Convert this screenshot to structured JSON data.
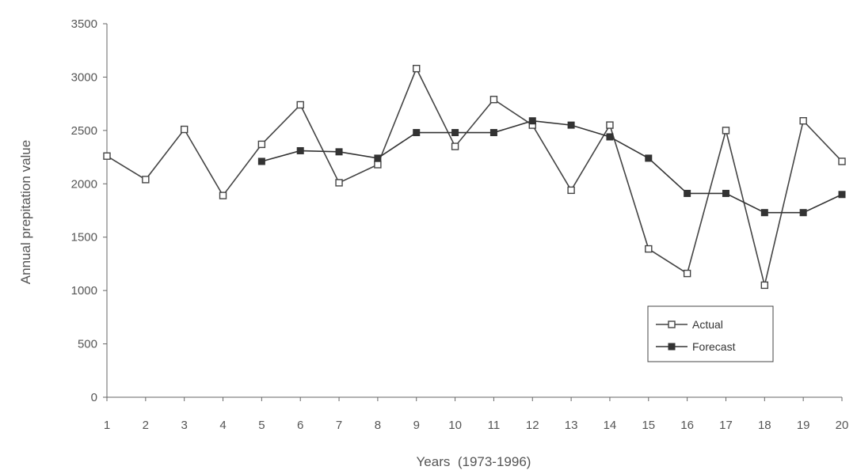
{
  "chart_data": {
    "type": "line",
    "title": "",
    "xlabel": "Years  (1973-1996)",
    "ylabel": "Annual prepitation value",
    "x": [
      1,
      2,
      3,
      4,
      5,
      6,
      7,
      8,
      9,
      10,
      11,
      12,
      13,
      14,
      15,
      16,
      17,
      18,
      19,
      20
    ],
    "xticks": [
      "1",
      "2",
      "3",
      "4",
      "5",
      "6",
      "7",
      "8",
      "9",
      "10",
      "11",
      "12",
      "13",
      "14",
      "15",
      "16",
      "17",
      "18",
      "19",
      "20"
    ],
    "yticks": [
      "0",
      "500",
      "1000",
      "1500",
      "2000",
      "2500",
      "3000",
      "3500"
    ],
    "ylim": [
      0,
      3500
    ],
    "grid": false,
    "legend": "right",
    "series": [
      {
        "name": "Actual",
        "marker": "hollow-square",
        "color": "#444444",
        "values": [
          2260,
          2040,
          2510,
          1890,
          2370,
          2740,
          2010,
          2180,
          3080,
          2350,
          2790,
          2550,
          1940,
          2550,
          1390,
          1160,
          2500,
          1050,
          2590,
          2210
        ]
      },
      {
        "name": "Forecast",
        "marker": "filled-square",
        "color": "#333333",
        "values": [
          null,
          null,
          null,
          null,
          2210,
          2310,
          2300,
          2240,
          2480,
          2480,
          2480,
          2590,
          2550,
          2440,
          2240,
          1910,
          1910,
          1730,
          1730,
          1900
        ]
      }
    ]
  }
}
